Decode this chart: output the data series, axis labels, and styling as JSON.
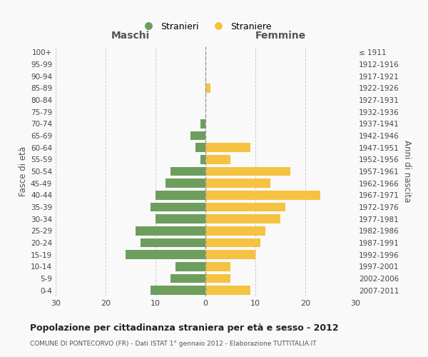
{
  "age_groups": [
    "0-4",
    "5-9",
    "10-14",
    "15-19",
    "20-24",
    "25-29",
    "30-34",
    "35-39",
    "40-44",
    "45-49",
    "50-54",
    "55-59",
    "60-64",
    "65-69",
    "70-74",
    "75-79",
    "80-84",
    "85-89",
    "90-94",
    "95-99",
    "100+"
  ],
  "birth_years": [
    "2007-2011",
    "2002-2006",
    "1997-2001",
    "1992-1996",
    "1987-1991",
    "1982-1986",
    "1977-1981",
    "1972-1976",
    "1967-1971",
    "1962-1966",
    "1957-1961",
    "1952-1956",
    "1947-1951",
    "1942-1946",
    "1937-1941",
    "1932-1936",
    "1927-1931",
    "1922-1926",
    "1917-1921",
    "1912-1916",
    "≤ 1911"
  ],
  "maschi": [
    11,
    7,
    6,
    16,
    13,
    14,
    10,
    11,
    10,
    8,
    7,
    1,
    2,
    3,
    1,
    0,
    0,
    0,
    0,
    0,
    0
  ],
  "femmine": [
    9,
    5,
    5,
    10,
    11,
    12,
    15,
    16,
    23,
    13,
    17,
    5,
    9,
    0,
    0,
    0,
    0,
    1,
    0,
    0,
    0
  ],
  "color_maschi": "#6d9e5e",
  "color_femmine": "#f5c242",
  "title": "Popolazione per cittadinanza straniera per età e sesso - 2012",
  "subtitle": "COMUNE DI PONTECORVO (FR) - Dati ISTAT 1° gennaio 2012 - Elaborazione TUTTITALIA.IT",
  "xlabel_left": "Maschi",
  "xlabel_right": "Femmine",
  "ylabel_left": "Fasce di età",
  "ylabel_right": "Anni di nascita",
  "legend_maschi": "Stranieri",
  "legend_femmine": "Straniere",
  "xlim": 30,
  "background_color": "#f9f9f9",
  "grid_color": "#cccccc"
}
